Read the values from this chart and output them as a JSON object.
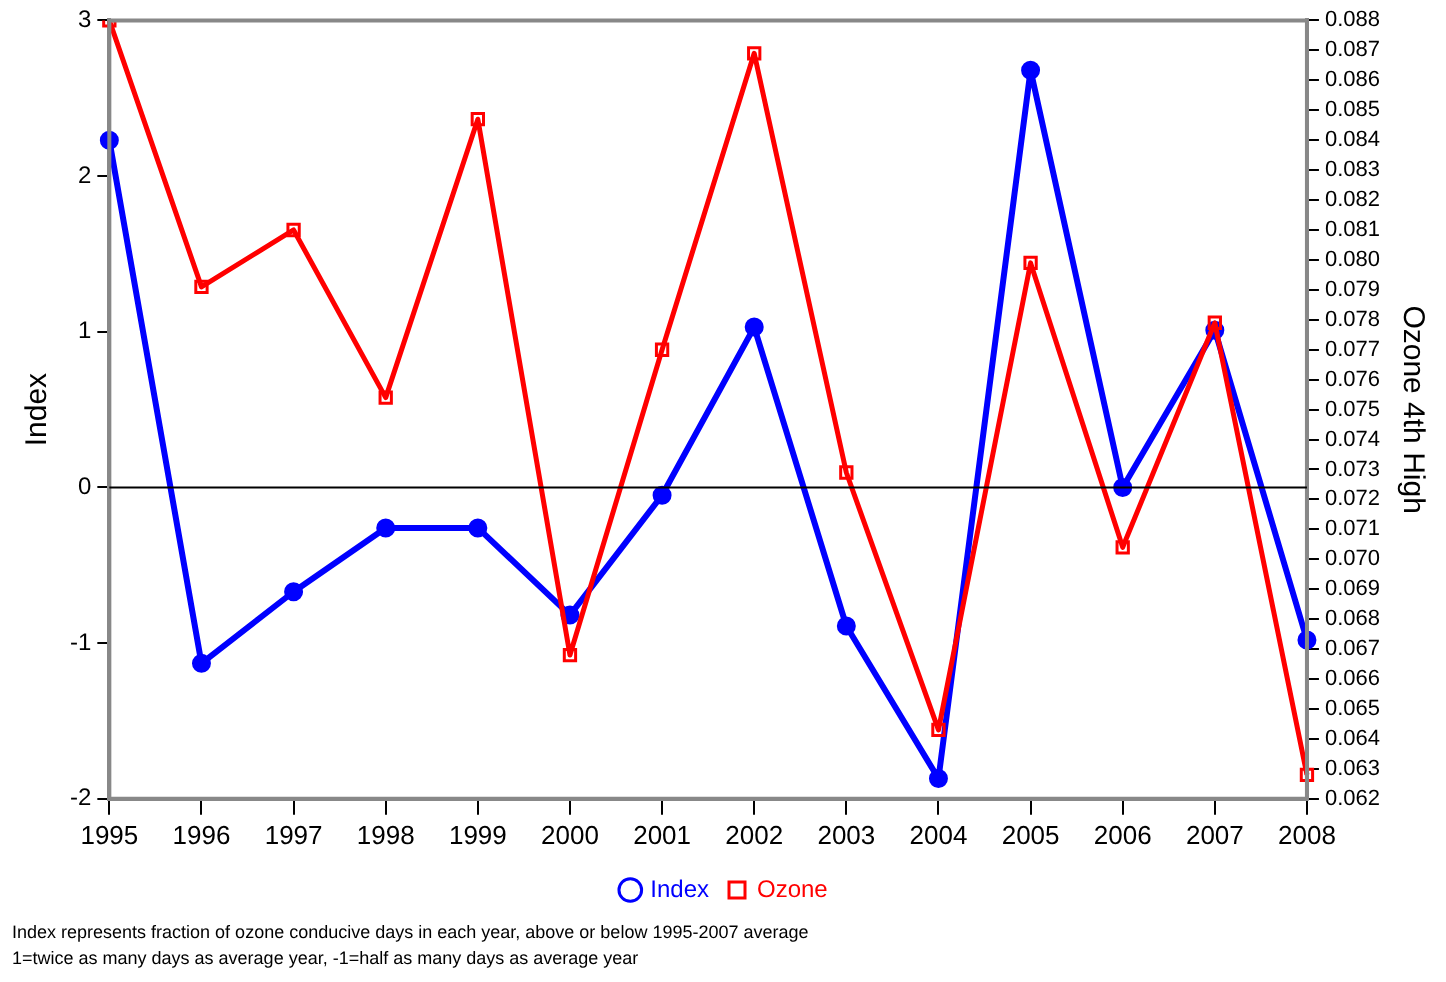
{
  "chart_data": {
    "type": "line",
    "xlabel": null,
    "ylabel": "Index",
    "y2label": "Ozone 4th High",
    "categories": [
      "1995",
      "1996",
      "1997",
      "1998",
      "1999",
      "2000",
      "2001",
      "2002",
      "2003",
      "2004",
      "2005",
      "2006",
      "2007",
      "2008"
    ],
    "series": [
      {
        "name": "Index",
        "color": "#0000ff",
        "marker": "circle",
        "values": [
          2.23,
          -1.13,
          -0.67,
          -0.26,
          -0.26,
          -0.82,
          -0.05,
          1.03,
          -0.89,
          -1.87,
          2.68,
          0.0,
          1.01,
          -0.98
        ]
      },
      {
        "name": "Ozone",
        "color": "#ff0000",
        "marker": "square",
        "axis": "y2",
        "values": [
          0.088,
          0.0791,
          0.081,
          0.0754,
          0.0847,
          0.0668,
          0.077,
          0.0869,
          0.0729,
          0.0643,
          0.0799,
          0.0704,
          0.0779,
          0.0628
        ]
      }
    ],
    "ylim": [
      -2,
      3
    ],
    "yticks": [
      -2,
      -1,
      0,
      1,
      2,
      3
    ],
    "y2lim": [
      0.062,
      0.088
    ],
    "y2ticks": [
      0.062,
      0.063,
      0.064,
      0.065,
      0.066,
      0.067,
      0.068,
      0.069,
      {
        "value": 0.07,
        "label": "0.070"
      },
      0.071,
      0.072,
      0.073,
      0.074,
      0.075,
      0.076,
      0.077,
      0.078,
      0.079,
      {
        "value": 0.08,
        "label": "0.080"
      },
      0.081,
      0.082,
      0.083,
      0.084,
      0.085,
      0.086,
      0.087,
      0.088
    ],
    "ref_lines": [
      {
        "axis": "y",
        "value": 0,
        "color": "#000000"
      }
    ],
    "grid": false,
    "legend": "bottom",
    "annotations": [
      "Index represents fraction of ozone conducive days in each year, above or below 1995-2007 average",
      "1=twice as many days as average year, -1=half as many days as average year"
    ]
  }
}
